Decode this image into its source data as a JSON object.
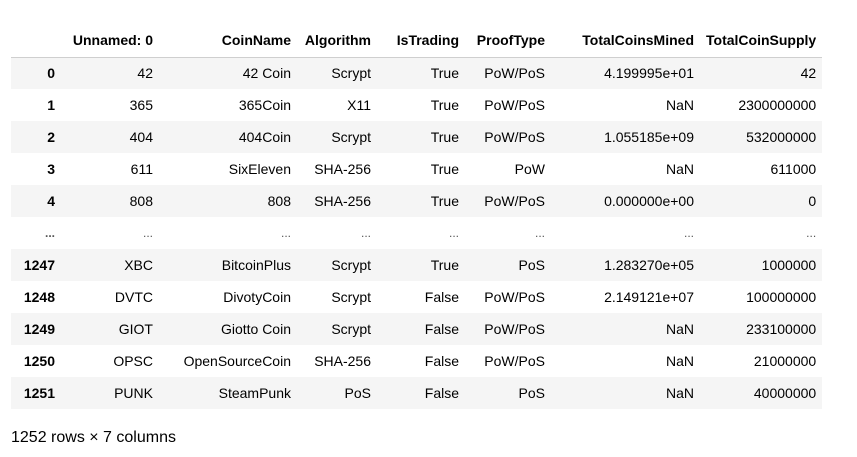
{
  "dataframe": {
    "columns": [
      "",
      "Unnamed: 0",
      "CoinName",
      "Algorithm",
      "IsTrading",
      "ProofType",
      "TotalCoinsMined",
      "TotalCoinSupply"
    ],
    "rows": [
      [
        "0",
        "42",
        "42 Coin",
        "Scrypt",
        "True",
        "PoW/PoS",
        "4.199995e+01",
        "42"
      ],
      [
        "1",
        "365",
        "365Coin",
        "X11",
        "True",
        "PoW/PoS",
        "NaN",
        "2300000000"
      ],
      [
        "2",
        "404",
        "404Coin",
        "Scrypt",
        "True",
        "PoW/PoS",
        "1.055185e+09",
        "532000000"
      ],
      [
        "3",
        "611",
        "SixEleven",
        "SHA-256",
        "True",
        "PoW",
        "NaN",
        "611000"
      ],
      [
        "4",
        "808",
        "808",
        "SHA-256",
        "True",
        "PoW/PoS",
        "0.000000e+00",
        "0"
      ],
      [
        "...",
        "...",
        "...",
        "...",
        "...",
        "...",
        "...",
        "..."
      ],
      [
        "1247",
        "XBC",
        "BitcoinPlus",
        "Scrypt",
        "True",
        "PoS",
        "1.283270e+05",
        "1000000"
      ],
      [
        "1248",
        "DVTC",
        "DivotyCoin",
        "Scrypt",
        "False",
        "PoW/PoS",
        "2.149121e+07",
        "100000000"
      ],
      [
        "1249",
        "GIOT",
        "Giotto Coin",
        "Scrypt",
        "False",
        "PoW/PoS",
        "NaN",
        "233100000"
      ],
      [
        "1250",
        "OPSC",
        "OpenSourceCoin",
        "SHA-256",
        "False",
        "PoW/PoS",
        "NaN",
        "21000000"
      ],
      [
        "1251",
        "PUNK",
        "SteamPunk",
        "PoS",
        "False",
        "PoS",
        "NaN",
        "40000000"
      ]
    ]
  },
  "shape_note": "1252 rows × 7 columns"
}
